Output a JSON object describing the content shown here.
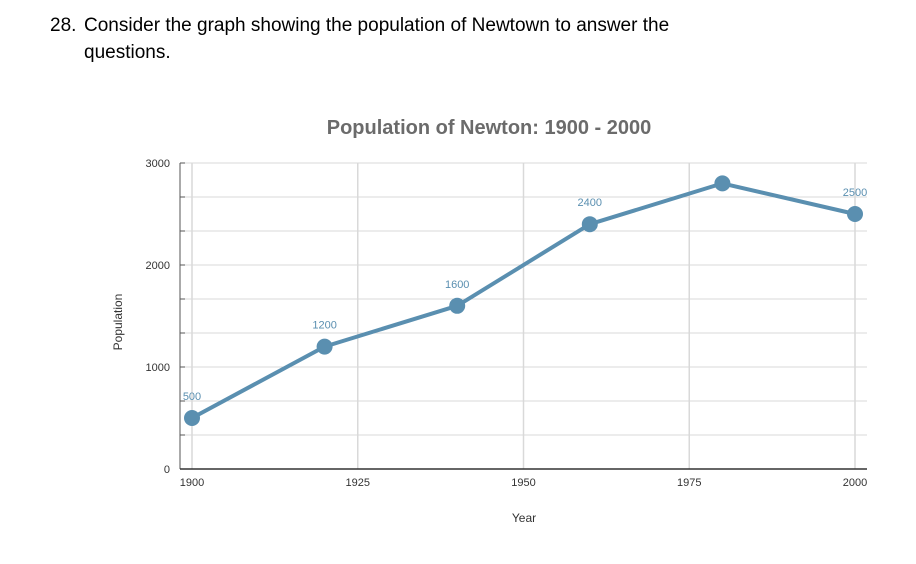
{
  "question": {
    "number": "28.",
    "line1": "Consider the graph showing the population of Newtown to answer the",
    "line2": "questions."
  },
  "chart_data": {
    "type": "line",
    "title": "Population of Newton: 1900 - 2000",
    "xlabel": "Year",
    "ylabel": "Population",
    "x": [
      1900,
      1920,
      1940,
      1960,
      1980,
      2000
    ],
    "series": [
      {
        "values": [
          500,
          1200,
          1600,
          2400,
          2800,
          2500
        ],
        "labels": [
          "500",
          "1200",
          "1600",
          "2400",
          "",
          "2500"
        ]
      }
    ],
    "xlim": [
      1900,
      2000
    ],
    "ylim": [
      0,
      3000
    ],
    "x_ticks": [
      "1900",
      "1925",
      "1950",
      "1975",
      "2000"
    ],
    "y_ticks": [
      "0",
      "1000",
      "2000",
      "3000"
    ],
    "grid": true,
    "line_color": "#5a8fb0",
    "grid_color": "#d9d9d9"
  }
}
